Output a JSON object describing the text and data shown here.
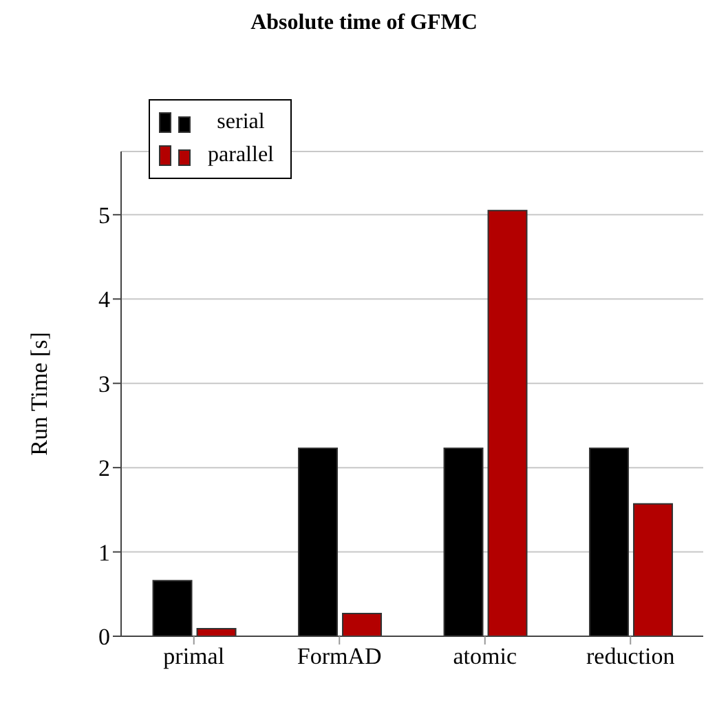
{
  "chart_data": {
    "type": "bar",
    "title": "Absolute time of GFMC",
    "ylabel": "Run Time [s]",
    "categories": [
      "primal",
      "FormAD",
      "atomic",
      "reduction"
    ],
    "series": [
      {
        "name": "serial",
        "color": "#000000",
        "values": [
          0.66,
          2.23,
          2.23,
          2.23
        ]
      },
      {
        "name": "parallel",
        "color": "#b30000",
        "values": [
          0.09,
          0.27,
          5.05,
          1.57
        ]
      }
    ],
    "ylim": [
      0,
      5.75
    ],
    "yticks": [
      0,
      1,
      2,
      3,
      4,
      5
    ],
    "grid": "y",
    "legend": "top left"
  }
}
